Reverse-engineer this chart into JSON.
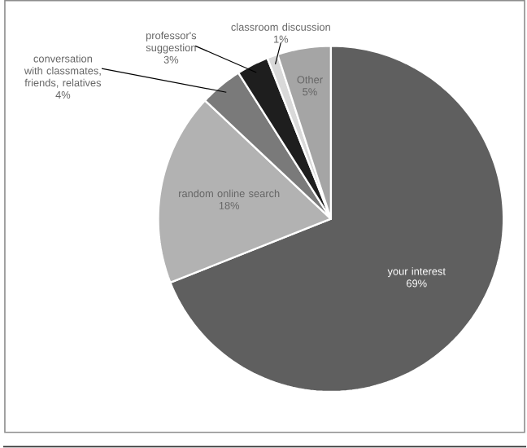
{
  "chart_data": {
    "type": "pie",
    "categories": [
      "your interest",
      "random online search",
      "conversation with classmates, friends, relatives",
      "professor's suggestion",
      "classroom discussion",
      "Other"
    ],
    "values": [
      69,
      18,
      4,
      3,
      1,
      5
    ],
    "value_labels": [
      "69%",
      "18%",
      "4%",
      "3%",
      "1%",
      "5%"
    ],
    "colors": [
      "#5f5f5f",
      "#b2b2b2",
      "#7a7a7a",
      "#1e1e1e",
      "#d9d9d9",
      "#a5a5a5"
    ]
  }
}
